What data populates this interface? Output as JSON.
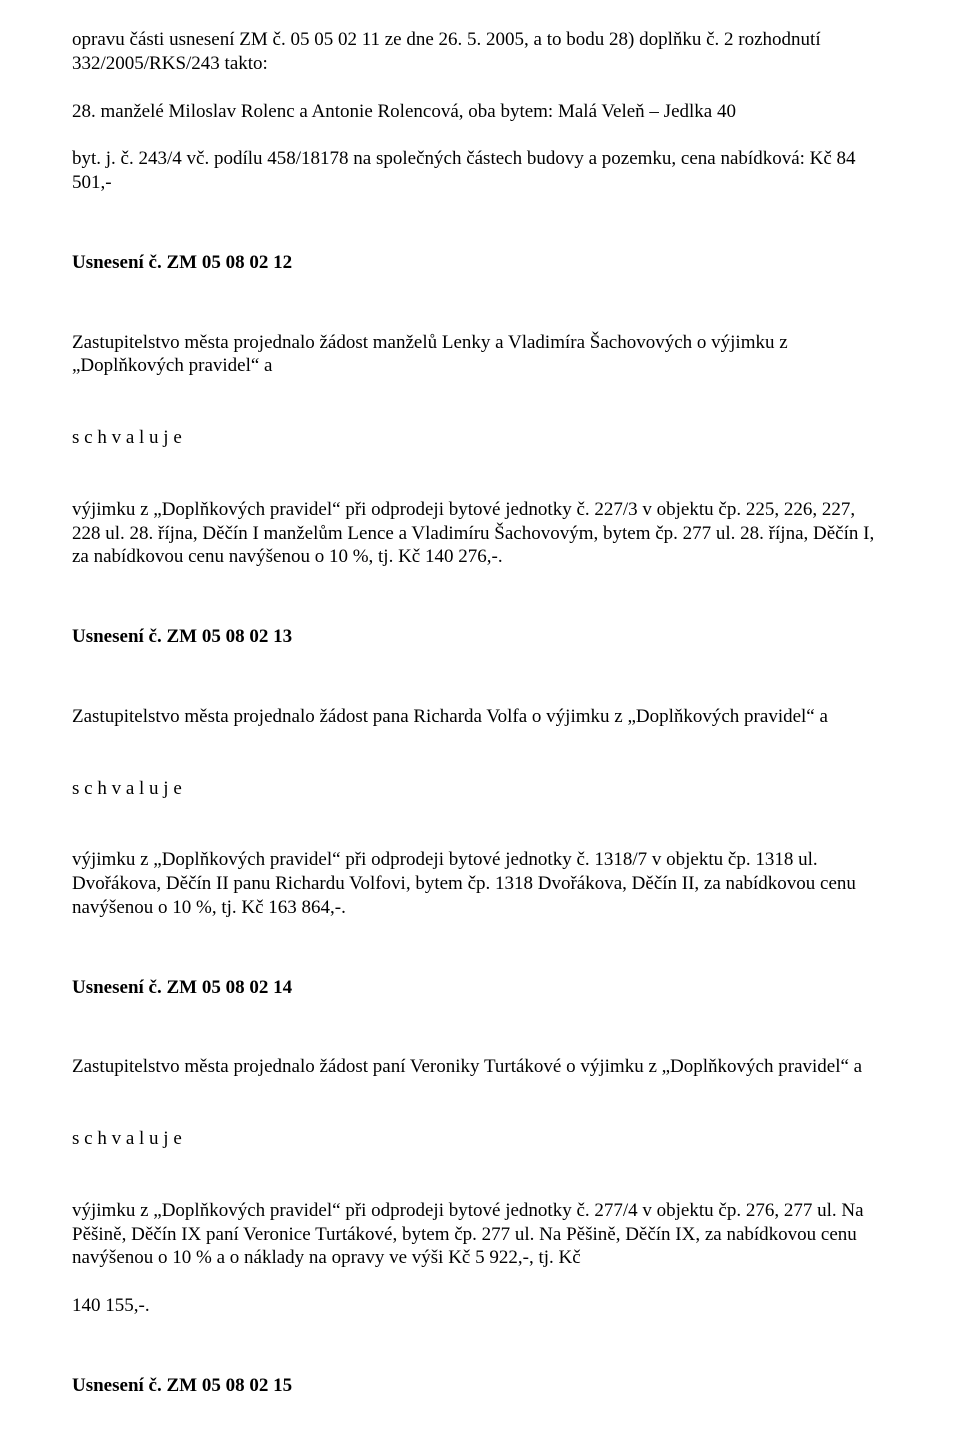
{
  "p0": "opravu části usnesení ZM č. 05 05 02 11 ze dne 26. 5. 2005, a to bodu 28) doplňku č. 2 rozhodnutí 332/2005/RKS/243 takto:",
  "p1": "28. manželé Miloslav Rolenc a Antonie Rolencová, oba bytem: Malá Veleň – Jedlka 40",
  "p2": "byt. j. č. 243/4 vč. podílu 458/18178 na společných částech budovy a pozemku, cena nabídková: Kč 84 501,-",
  "h1": "Usnesení č. ZM 05 08 02 12",
  "p3": "Zastupitelstvo města projednalo žádost manželů Lenky a Vladimíra Šachovových o výjimku z „Doplňkových pravidel“ a",
  "schvaluje": "s c h v a l u j e",
  "p4": "výjimku z „Doplňkových pravidel“ při odprodeji bytové jednotky č. 227/3 v objektu čp. 225, 226, 227, 228 ul. 28. října, Děčín I manželům Lence a Vladimíru Šachovovým, bytem čp. 277 ul. 28. října, Děčín I, za nabídkovou cenu navýšenou o 10 %, tj. Kč 140 276,-.",
  "h2": "Usnesení č. ZM 05 08 02 13",
  "p5": "Zastupitelstvo města projednalo žádost pana Richarda Volfa o výjimku z „Doplňkových pravidel“ a",
  "p6": "výjimku z „Doplňkových pravidel“ při odprodeji bytové jednotky č. 1318/7 v objektu čp. 1318 ul. Dvořákova, Děčín II panu Richardu Volfovi, bytem čp. 1318 Dvořákova, Děčín II, za nabídkovou cenu navýšenou o 10 %, tj. Kč 163 864,-.",
  "h3": "Usnesení č. ZM 05 08 02 14",
  "p7": "Zastupitelstvo města projednalo žádost paní Veroniky Turtákové o výjimku z „Doplňkových pravidel“ a",
  "p8": "výjimku z „Doplňkových pravidel“ při odprodeji bytové jednotky č. 277/4 v objektu čp. 276, 277 ul. Na Pěšině, Děčín IX paní Veronice Turtákové, bytem čp. 277 ul. Na Pěšině, Děčín IX, za nabídkovou cenu navýšenou o 10 % a o náklady na opravy ve výši Kč 5 922,-, tj. Kč",
  "p9": "140 155,-.",
  "h4": "Usnesení č. ZM 05 08 02 15"
}
